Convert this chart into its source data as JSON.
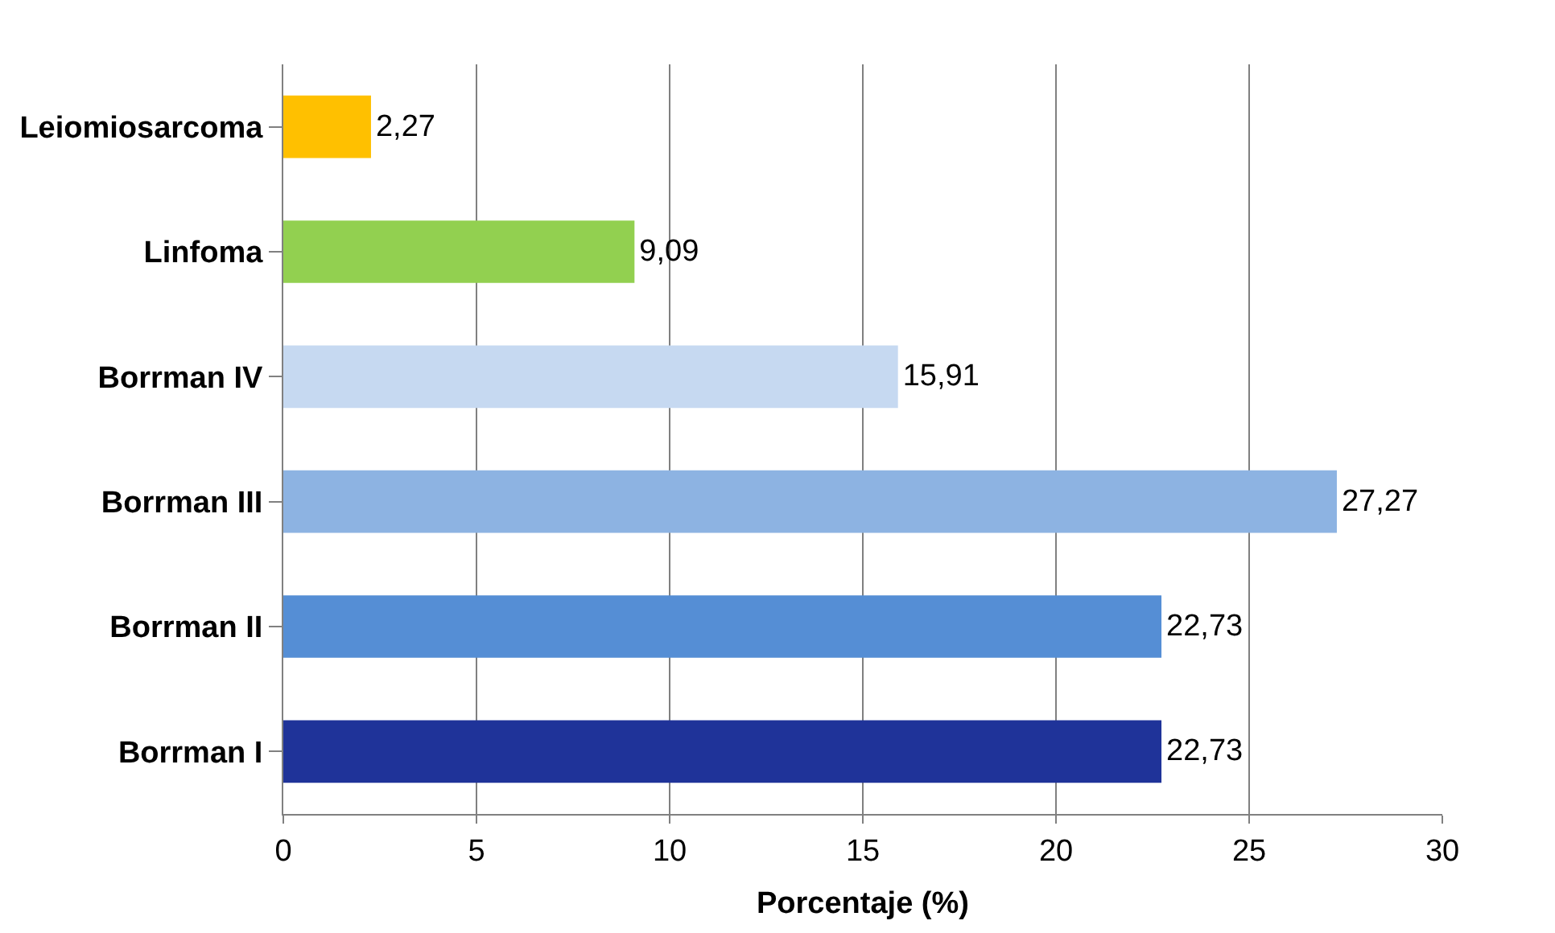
{
  "chart_data": {
    "type": "bar",
    "orientation": "horizontal",
    "xlabel": "Porcentaje (%)",
    "categories": [
      "Leiomiosarcoma",
      "Linfoma",
      "Borrman IV",
      "Borrman III",
      "Borrman II",
      "Borrman I"
    ],
    "values": [
      2.27,
      9.09,
      15.91,
      27.27,
      22.73,
      22.73
    ],
    "value_labels": [
      "2,27",
      "9,09",
      "15,91",
      "27,27",
      "22,73",
      "22,73"
    ],
    "colors": [
      "#ffc000",
      "#92d050",
      "#c6d9f1",
      "#8db3e2",
      "#558ed5",
      "#1f3399"
    ],
    "xlim": [
      0,
      30
    ],
    "xticks": [
      0,
      5,
      10,
      15,
      20,
      25,
      30
    ],
    "grid": "x"
  }
}
